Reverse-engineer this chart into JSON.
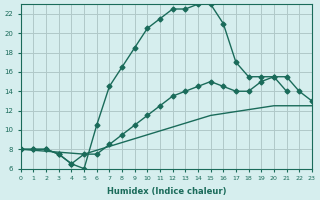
{
  "xlabel": "Humidex (Indice chaleur)",
  "background_color": "#d6eeee",
  "grid_color": "#b0c8c8",
  "line_color": "#1a6b5a",
  "xlim": [
    0,
    23
  ],
  "ylim": [
    6,
    23
  ],
  "xticks": [
    0,
    1,
    2,
    3,
    4,
    5,
    6,
    7,
    8,
    9,
    10,
    11,
    12,
    13,
    14,
    15,
    16,
    17,
    18,
    19,
    20,
    21,
    22,
    23
  ],
  "yticks": [
    6,
    8,
    10,
    12,
    14,
    16,
    18,
    20,
    22
  ],
  "line1_x": [
    0,
    1,
    2,
    3,
    4,
    5,
    6,
    7,
    8,
    9,
    10,
    11,
    12,
    13,
    14,
    15,
    16,
    17,
    18,
    19,
    20,
    21
  ],
  "line1_y": [
    8,
    8,
    8,
    7.5,
    6.5,
    6,
    10.5,
    14.5,
    16.5,
    18.5,
    20.5,
    21.5,
    22.5,
    22.5,
    23,
    23,
    21,
    17,
    15.5,
    15.5,
    15.5,
    14
  ],
  "line2_x": [
    0,
    1,
    2,
    3,
    4,
    5,
    6,
    7,
    8,
    9,
    10,
    11,
    12,
    13,
    14,
    15,
    16,
    17,
    18,
    19,
    20,
    21,
    22,
    23
  ],
  "line2_y": [
    8,
    8,
    8,
    7.5,
    6.5,
    7.5,
    7.5,
    8.5,
    9.5,
    10.5,
    11.5,
    12.5,
    13.5,
    14,
    14.5,
    15,
    14.5,
    14,
    14,
    15,
    15.5,
    15.5,
    14,
    13
  ],
  "line3_x": [
    0,
    5,
    10,
    15,
    20,
    23
  ],
  "line3_y": [
    8,
    7.5,
    9.5,
    11.5,
    12.5,
    12.5
  ]
}
